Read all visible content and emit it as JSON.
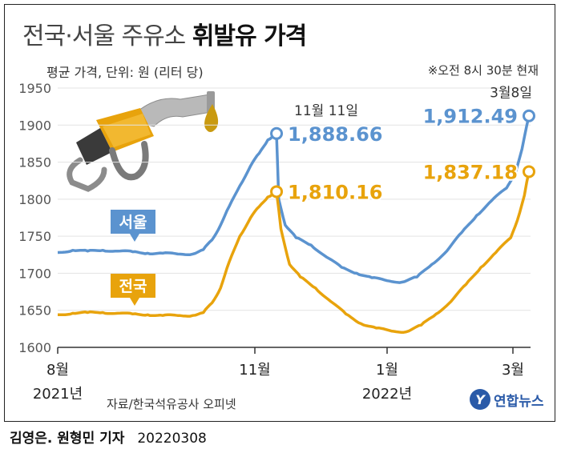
{
  "title_light": "전국·서울 주유소",
  "title_bold": "휘발유 가격",
  "subtitle": "평균 가격, 단위: 원 (리터 당)",
  "time_note": "※오전 8시 30분 현재",
  "source": "자료/한국석유공사 오피넷",
  "credit": {
    "reporters": "김영은. 원형민 기자",
    "date": "20220308"
  },
  "logo": {
    "mark": "Y",
    "text": "연합뉴스"
  },
  "colors": {
    "seoul": "#5b93cf",
    "national": "#e8a30c",
    "axis": "#333333",
    "grid": "#e3e3e3"
  },
  "chart_data": {
    "type": "line",
    "ylim": [
      1600,
      1950
    ],
    "yticks": [
      1600,
      1650,
      1700,
      1750,
      1800,
      1850,
      1900,
      1950
    ],
    "xlim": [
      "2021-08-01",
      "2022-03-08"
    ],
    "xticks": [
      {
        "x": "2021-08-01",
        "label": "8월",
        "sublabel": "2021년"
      },
      {
        "x": "2021-11-01",
        "label": "11월",
        "sublabel": ""
      },
      {
        "x": "2022-01-01",
        "label": "1월",
        "sublabel": "2022년"
      },
      {
        "x": "2022-03-01",
        "label": "3월",
        "sublabel": ""
      }
    ],
    "series": [
      {
        "name": "서울",
        "color": "#5b93cf",
        "points": [
          [
            "2021-08-01",
            1728
          ],
          [
            "2021-08-08",
            1731
          ],
          [
            "2021-08-15",
            1730
          ],
          [
            "2021-08-22",
            1731
          ],
          [
            "2021-08-29",
            1730
          ],
          [
            "2021-09-05",
            1729
          ],
          [
            "2021-09-12",
            1727
          ],
          [
            "2021-09-19",
            1727
          ],
          [
            "2021-09-26",
            1726
          ],
          [
            "2021-10-03",
            1726
          ],
          [
            "2021-10-08",
            1732
          ],
          [
            "2021-10-12",
            1745
          ],
          [
            "2021-10-16",
            1765
          ],
          [
            "2021-10-20",
            1790
          ],
          [
            "2021-10-25",
            1818
          ],
          [
            "2021-10-30",
            1845
          ],
          [
            "2021-11-03",
            1862
          ],
          [
            "2021-11-07",
            1880
          ],
          [
            "2021-11-11",
            1888.66
          ],
          [
            "2021-11-12",
            1800
          ],
          [
            "2021-11-15",
            1765
          ],
          [
            "2021-11-20",
            1748
          ],
          [
            "2021-11-27",
            1738
          ],
          [
            "2021-12-04",
            1722
          ],
          [
            "2021-12-11",
            1708
          ],
          [
            "2021-12-18",
            1700
          ],
          [
            "2021-12-25",
            1694
          ],
          [
            "2022-01-01",
            1690
          ],
          [
            "2022-01-08",
            1688
          ],
          [
            "2022-01-15",
            1695
          ],
          [
            "2022-01-22",
            1712
          ],
          [
            "2022-01-29",
            1730
          ],
          [
            "2022-02-05",
            1755
          ],
          [
            "2022-02-12",
            1778
          ],
          [
            "2022-02-19",
            1798
          ],
          [
            "2022-02-26",
            1815
          ],
          [
            "2022-03-02",
            1835
          ],
          [
            "2022-03-05",
            1868
          ],
          [
            "2022-03-08",
            1912.49
          ]
        ],
        "end_label": "1,912.49",
        "end_date_label": "3월8일",
        "peak_label": "1,888.66",
        "peak_date_label": "11월 11일"
      },
      {
        "name": "전국",
        "color": "#e8a30c",
        "points": [
          [
            "2021-08-01",
            1644
          ],
          [
            "2021-08-08",
            1646
          ],
          [
            "2021-08-15",
            1647
          ],
          [
            "2021-08-22",
            1647
          ],
          [
            "2021-08-29",
            1646
          ],
          [
            "2021-09-05",
            1645
          ],
          [
            "2021-09-12",
            1644
          ],
          [
            "2021-09-19",
            1643
          ],
          [
            "2021-09-26",
            1643
          ],
          [
            "2021-10-03",
            1643
          ],
          [
            "2021-10-08",
            1647
          ],
          [
            "2021-10-12",
            1660
          ],
          [
            "2021-10-16",
            1680
          ],
          [
            "2021-10-20",
            1715
          ],
          [
            "2021-10-25",
            1750
          ],
          [
            "2021-10-30",
            1775
          ],
          [
            "2021-11-03",
            1790
          ],
          [
            "2021-11-07",
            1803
          ],
          [
            "2021-11-11",
            1810.16
          ],
          [
            "2021-11-13",
            1760
          ],
          [
            "2021-11-17",
            1712
          ],
          [
            "2021-11-22",
            1695
          ],
          [
            "2021-11-29",
            1680
          ],
          [
            "2021-12-06",
            1662
          ],
          [
            "2021-12-13",
            1645
          ],
          [
            "2021-12-20",
            1632
          ],
          [
            "2021-12-27",
            1626
          ],
          [
            "2022-01-03",
            1622
          ],
          [
            "2022-01-10",
            1621
          ],
          [
            "2022-01-17",
            1630
          ],
          [
            "2022-01-24",
            1645
          ],
          [
            "2022-01-31",
            1662
          ],
          [
            "2022-02-07",
            1685
          ],
          [
            "2022-02-14",
            1708
          ],
          [
            "2022-02-21",
            1728
          ],
          [
            "2022-02-28",
            1748
          ],
          [
            "2022-03-03",
            1772
          ],
          [
            "2022-03-06",
            1805
          ],
          [
            "2022-03-08",
            1837.18
          ]
        ],
        "end_label": "1,837.18",
        "peak_label": "1,810.16"
      }
    ]
  }
}
